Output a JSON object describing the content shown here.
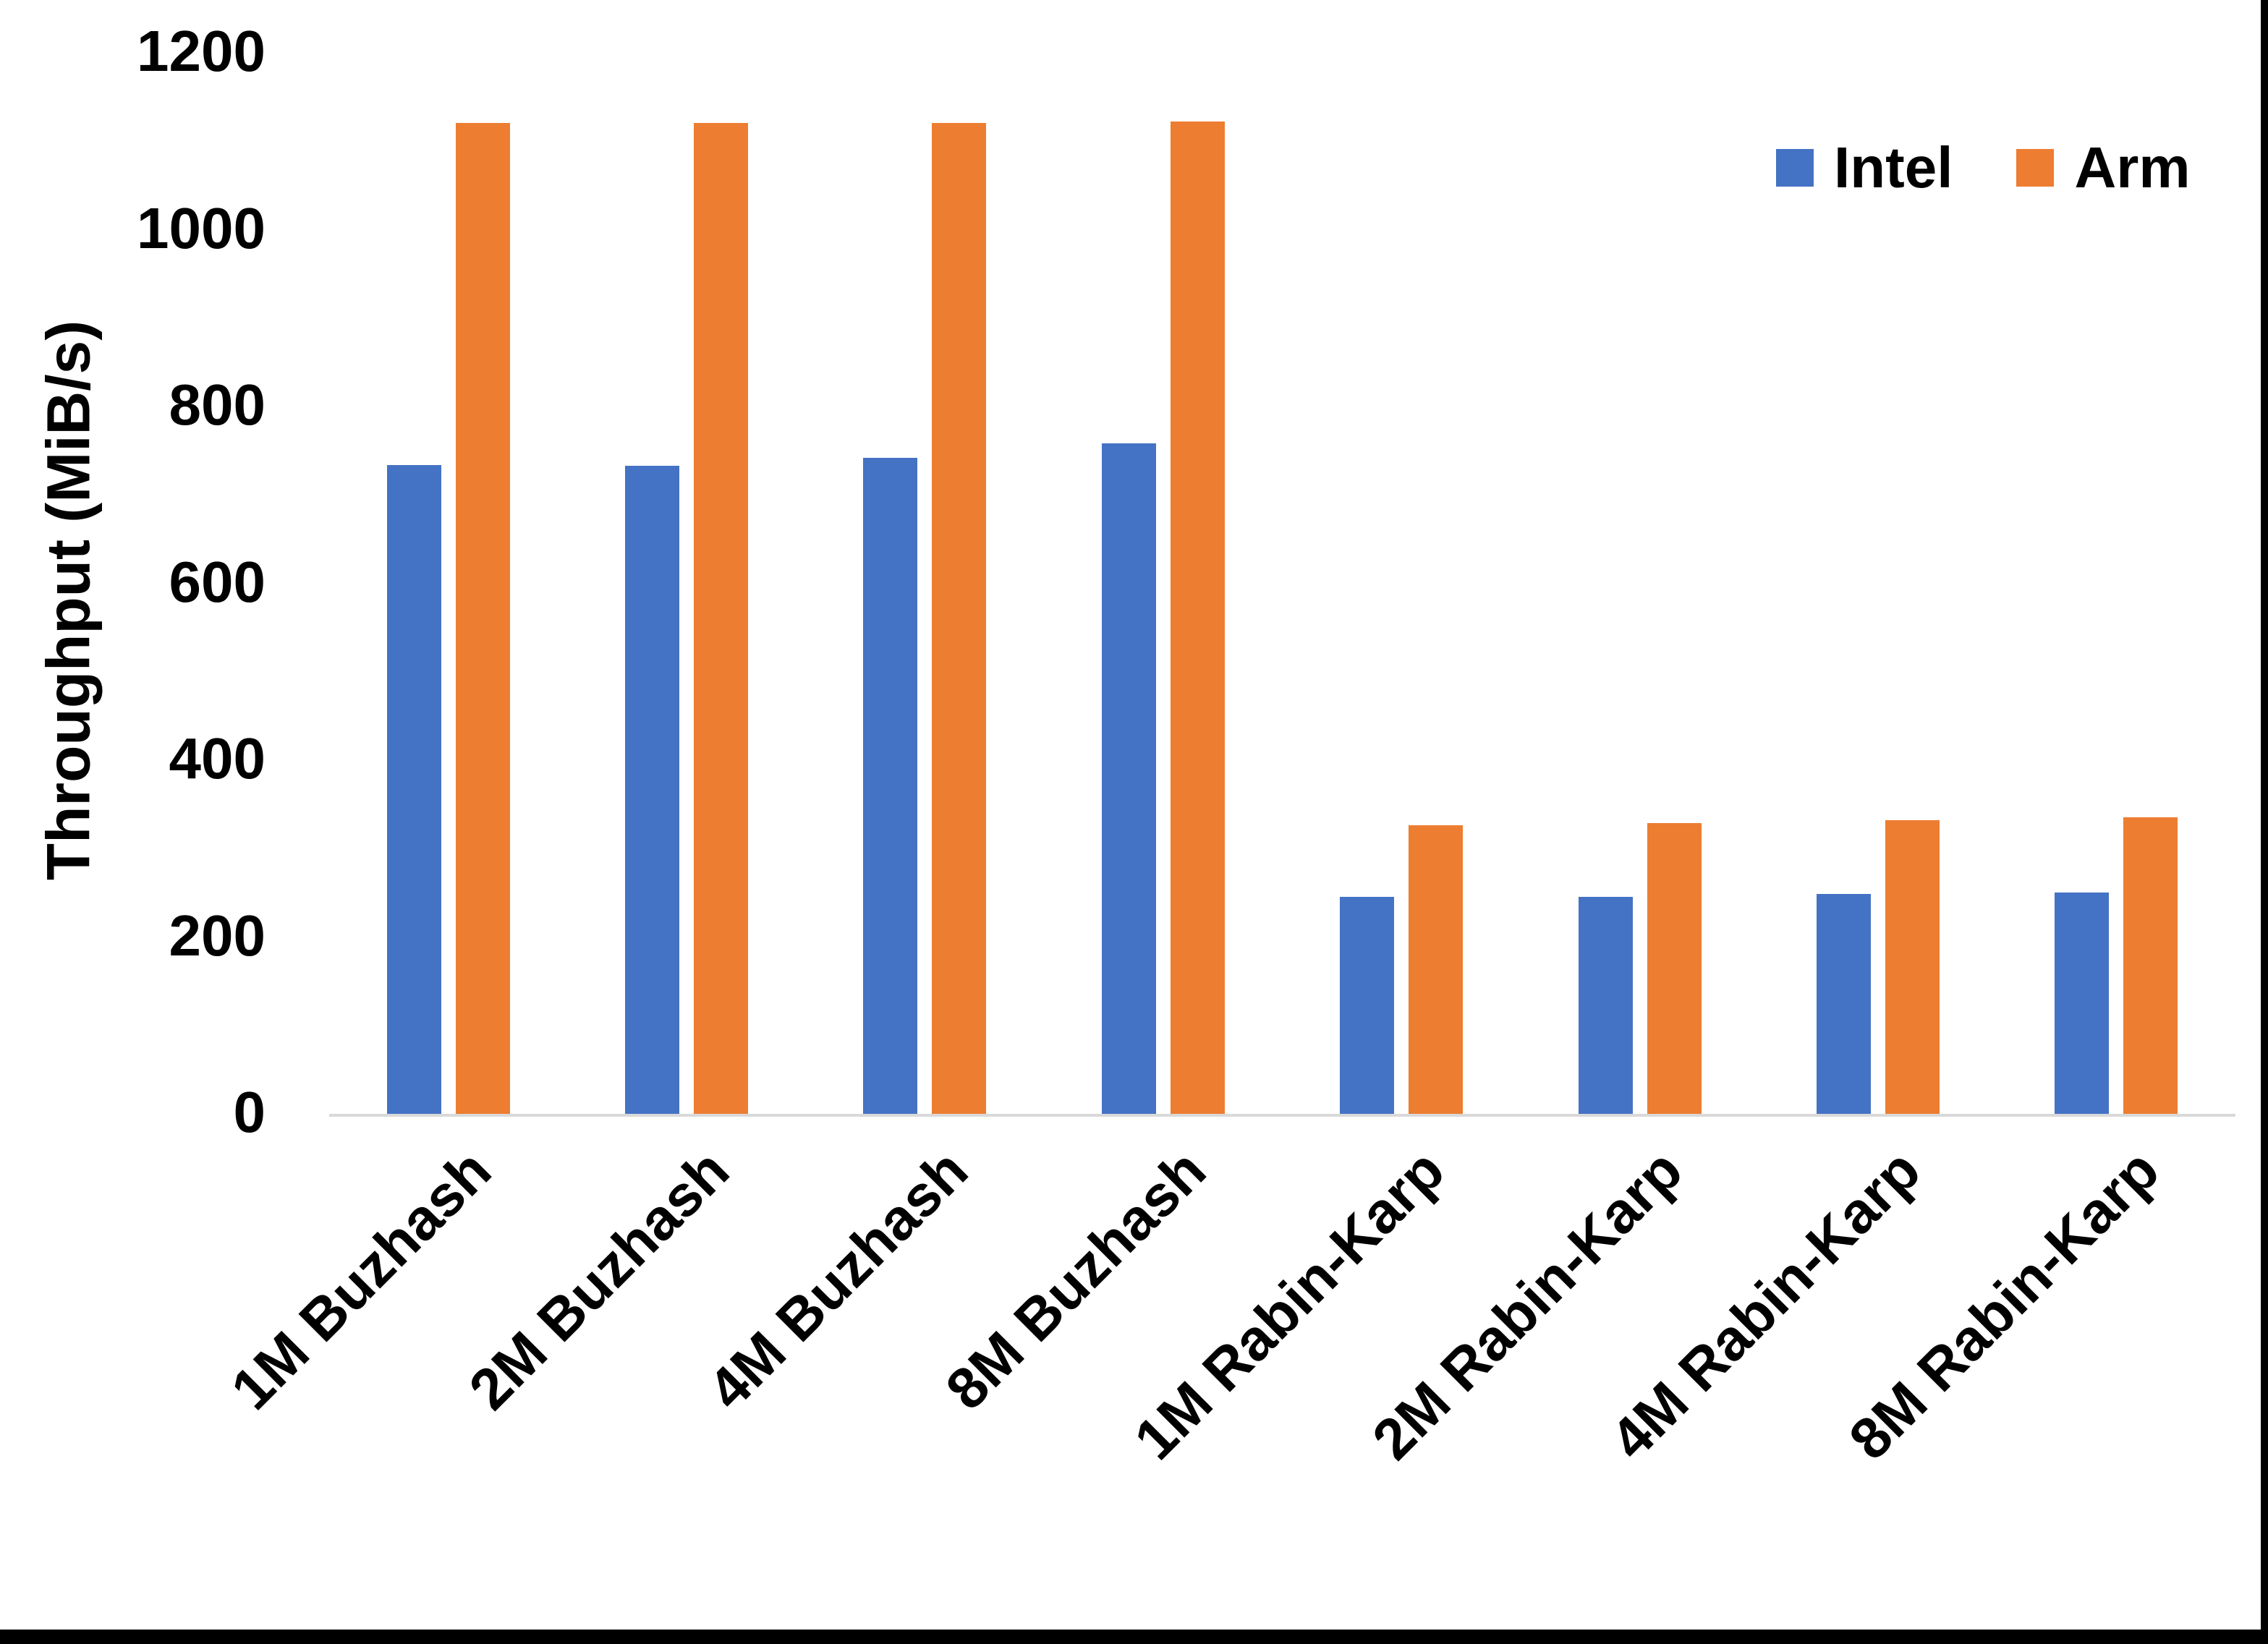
{
  "chart_data": {
    "type": "bar",
    "title": "",
    "categories": [
      "1M Buzhash",
      "2M Buzhash",
      "4M Buzhash",
      "8M Buzhash",
      "1M Rabin-Karp",
      "2M Rabin-Karp",
      "4M Rabin-Karp",
      "8M Rabin-Karp"
    ],
    "series": [
      {
        "name": "Intel",
        "color": "#4472C4",
        "values": [
          734,
          733,
          742,
          758,
          245,
          245,
          249,
          250
        ]
      },
      {
        "name": "Arm",
        "color": "#ED7D31",
        "values": [
          1121,
          1121,
          1121,
          1122,
          326,
          329,
          332,
          335
        ]
      }
    ],
    "xlabel": "",
    "ylabel": "Throughput (MiB/s)",
    "ylim": [
      0,
      1200
    ],
    "yticks": [
      0,
      200,
      400,
      600,
      800,
      1000,
      1200
    ],
    "grid": false,
    "legend_position": "top-right"
  },
  "axis": {
    "y_title": "Throughput (MiB/s)"
  },
  "legend": {
    "items": [
      {
        "label": "Intel",
        "color": "#4472C4"
      },
      {
        "label": "Arm",
        "color": "#ED7D31"
      }
    ]
  },
  "colors": {
    "intel": "#4472C4",
    "arm": "#ED7D31",
    "axis_line": "#D9D9D9",
    "text": "#000000",
    "background": "#FFFFFF",
    "frame": "#000000"
  }
}
